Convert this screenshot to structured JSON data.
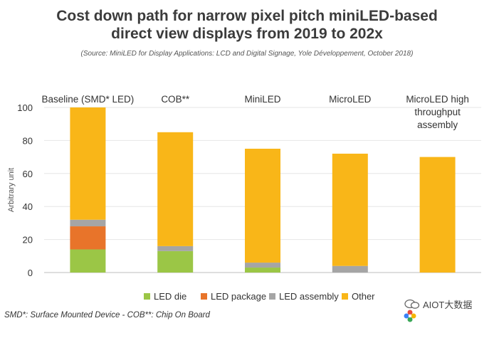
{
  "header": {
    "title_line1": "Cost down path for narrow pixel pitch miniLED-based",
    "title_line2": "direct view displays from 2019 to 202x",
    "source": "(Source: MiniLED for Display Applications: LCD and Digital Signage, Yole Développement, October 2018)"
  },
  "chart_data": {
    "type": "bar",
    "stacked": true,
    "categories": [
      [
        "Baseline (SMD* LED)"
      ],
      [
        "COB**"
      ],
      [
        "MiniLED"
      ],
      [
        "MicroLED"
      ],
      [
        "MicroLED high",
        "throughput",
        "assembly"
      ]
    ],
    "ylabel": "Arbitrary unit",
    "xlabel": "",
    "ylim": [
      0,
      100
    ],
    "yticks": [
      0,
      20,
      40,
      60,
      80,
      100
    ],
    "grid": true,
    "legend_position": "bottom",
    "colors": {
      "LED die": "#9bc646",
      "LED package": "#e8742a",
      "LED assembly": "#a5a5a5",
      "Others": "#f9b618"
    },
    "series": [
      {
        "name": "LED die",
        "values": [
          14,
          13,
          3,
          0,
          0
        ]
      },
      {
        "name": "LED package",
        "values": [
          14,
          0,
          0,
          0,
          0
        ]
      },
      {
        "name": "LED assembly",
        "values": [
          4,
          3,
          3,
          4,
          0
        ]
      },
      {
        "name": "Others",
        "values": [
          68,
          69,
          69,
          68,
          70
        ]
      }
    ],
    "legend": [
      "LED die",
      "LED package",
      "LED assembly",
      "Other"
    ]
  },
  "footnote": "SMD*: Surface Mounted Device - COB**: Chip On Board",
  "watermark": {
    "text": "AIOT大数据"
  }
}
